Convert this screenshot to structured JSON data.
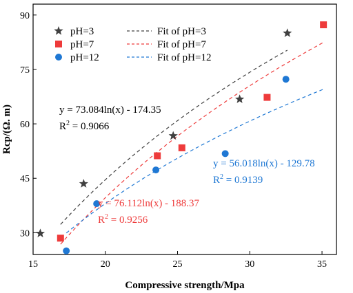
{
  "chart_data": {
    "type": "scatter",
    "xlabel": "Compressive strength/Mpa",
    "ylabel": "Rcp/(Ω. m)",
    "xlim": [
      15,
      36
    ],
    "ylim": [
      24,
      93
    ],
    "x_ticks": [
      15,
      20,
      25,
      30,
      35
    ],
    "y_ticks": [
      30,
      45,
      60,
      75,
      90
    ],
    "grid": false,
    "legend_position": "top-left",
    "series": [
      {
        "name": "pH=3",
        "marker": "star",
        "color": "#404040",
        "x": [
          15.5,
          18.5,
          24.7,
          29.3,
          32.6
        ],
        "y": [
          29.8,
          43.5,
          56.7,
          66.8,
          85.0
        ]
      },
      {
        "name": "pH=7",
        "marker": "square",
        "color": "#ee3b3b",
        "x": [
          16.9,
          23.6,
          25.3,
          31.2,
          35.1
        ],
        "y": [
          28.5,
          51.2,
          53.4,
          67.3,
          87.3
        ]
      },
      {
        "name": "pH=12",
        "marker": "circle",
        "color": "#1f78d4",
        "x": [
          17.3,
          19.4,
          23.5,
          28.3,
          32.5
        ],
        "y": [
          25.0,
          38.0,
          47.3,
          51.8,
          72.3
        ]
      }
    ],
    "fits": [
      {
        "name": "Fit of pH=3",
        "color": "#404040",
        "a": 73.084,
        "b": -174.35,
        "x_range": [
          16.9,
          32.6
        ],
        "equation": "y = 73.084ln(x) - 174.35",
        "r2_label": "R",
        "r2_value": " = 0.9066"
      },
      {
        "name": "Fit of pH=7",
        "color": "#ee3b3b",
        "a": 76.112,
        "b": -188.37,
        "x_range": [
          16.9,
          35.1
        ],
        "equation": "y = 76.112ln(x) - 188.37",
        "r2_label": "R",
        "r2_value": " = 0.9256"
      },
      {
        "name": "Fit of pH=12",
        "color": "#1f78d4",
        "a": 56.018,
        "b": -129.78,
        "x_range": [
          17.3,
          35.1
        ],
        "equation": "y = 56.018ln(x) - 129.78",
        "r2_label": "R",
        "r2_value": " = 0.9139"
      }
    ]
  }
}
